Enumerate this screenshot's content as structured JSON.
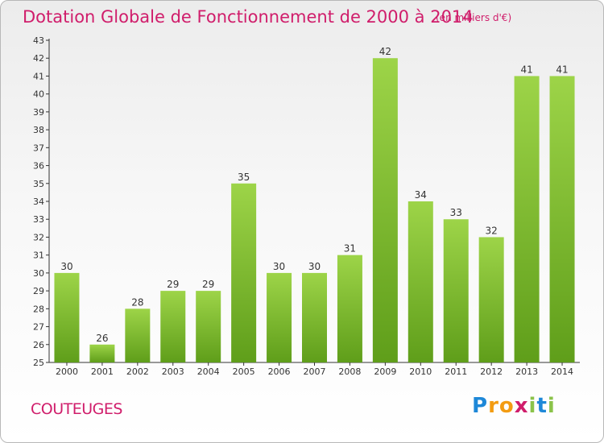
{
  "chart_data": {
    "type": "bar",
    "title": "Dotation Globale de Fonctionnement de 2000 à 2014",
    "subtitle": "(en milliers d'€)",
    "categories": [
      "2000",
      "2001",
      "2002",
      "2003",
      "2004",
      "2005",
      "2006",
      "2007",
      "2008",
      "2009",
      "2010",
      "2011",
      "2012",
      "2013",
      "2014"
    ],
    "values": [
      30,
      26,
      28,
      29,
      29,
      35,
      30,
      30,
      31,
      42,
      34,
      33,
      32,
      41,
      41
    ],
    "ylim": [
      25,
      43
    ],
    "yticks": [
      25,
      26,
      27,
      28,
      29,
      30,
      31,
      32,
      33,
      34,
      35,
      36,
      37,
      38,
      39,
      40,
      41,
      42,
      43
    ],
    "xlabel": "",
    "ylabel": "",
    "grid": false,
    "bar_color_top": "#9dd448",
    "bar_color_bottom": "#5f9e1a"
  },
  "commune": "COUTEUGES",
  "logo": {
    "letters": [
      "P",
      "r",
      "o",
      "x",
      "i",
      "t",
      "i"
    ],
    "colors": [
      "#1e88d8",
      "#f39c12",
      "#f39c12",
      "#d01d6b",
      "#8bc34a",
      "#1e88d8",
      "#8bc34a"
    ]
  },
  "colors": {
    "accent": "#d01d6b",
    "axis": "#333333"
  }
}
